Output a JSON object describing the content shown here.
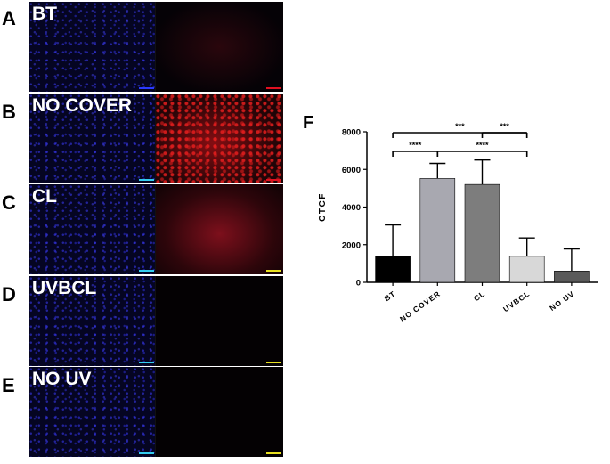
{
  "panels": [
    {
      "letter": "A",
      "label": "BT",
      "red_style": "faint",
      "right_scale_color": "#e01020",
      "left_scale_color": "#2a3aff"
    },
    {
      "letter": "B",
      "label": "NO COVER",
      "red_style": "strong",
      "right_scale_color": "#e01020",
      "left_scale_color": "#33ccee"
    },
    {
      "letter": "C",
      "label": "CL",
      "red_style": "glow",
      "right_scale_color": "#e8e020",
      "left_scale_color": "#33ccee"
    },
    {
      "letter": "D",
      "label": "UVBCL",
      "red_style": "none",
      "right_scale_color": "#e8e020",
      "left_scale_color": "#33ccee"
    },
    {
      "letter": "E",
      "label": "NO UV",
      "red_style": "none",
      "right_scale_color": "#e8e020",
      "left_scale_color": "#33ccee"
    }
  ],
  "figure_letter": "F",
  "chart_data": {
    "type": "bar",
    "title": "",
    "xlabel": "",
    "ylabel": "CTCF",
    "ylim": [
      0,
      8000
    ],
    "yticks": [
      0,
      2000,
      4000,
      6000,
      8000
    ],
    "ytick_labels": [
      "0",
      "2000",
      "4000",
      "6000",
      "8000"
    ],
    "categories": [
      "BT",
      "NO COVER",
      "CL",
      "UVBCL",
      "NO UV"
    ],
    "values": [
      1400,
      5520,
      5200,
      1380,
      600
    ],
    "errors": [
      1650,
      800,
      1300,
      980,
      1170
    ],
    "colors": [
      "#000000",
      "#a8a8b0",
      "#7d7d7d",
      "#d8d8d8",
      "#5a5a5a"
    ],
    "significance": [
      {
        "from": 0,
        "to": 3,
        "label": "***",
        "level": 3
      },
      {
        "from": 2,
        "to": 3,
        "label": "***",
        "level": 3
      },
      {
        "from": 0,
        "to": 1,
        "label": "****",
        "level": 2
      },
      {
        "from": 1,
        "to": 3,
        "label": "****",
        "level": 2
      }
    ]
  }
}
